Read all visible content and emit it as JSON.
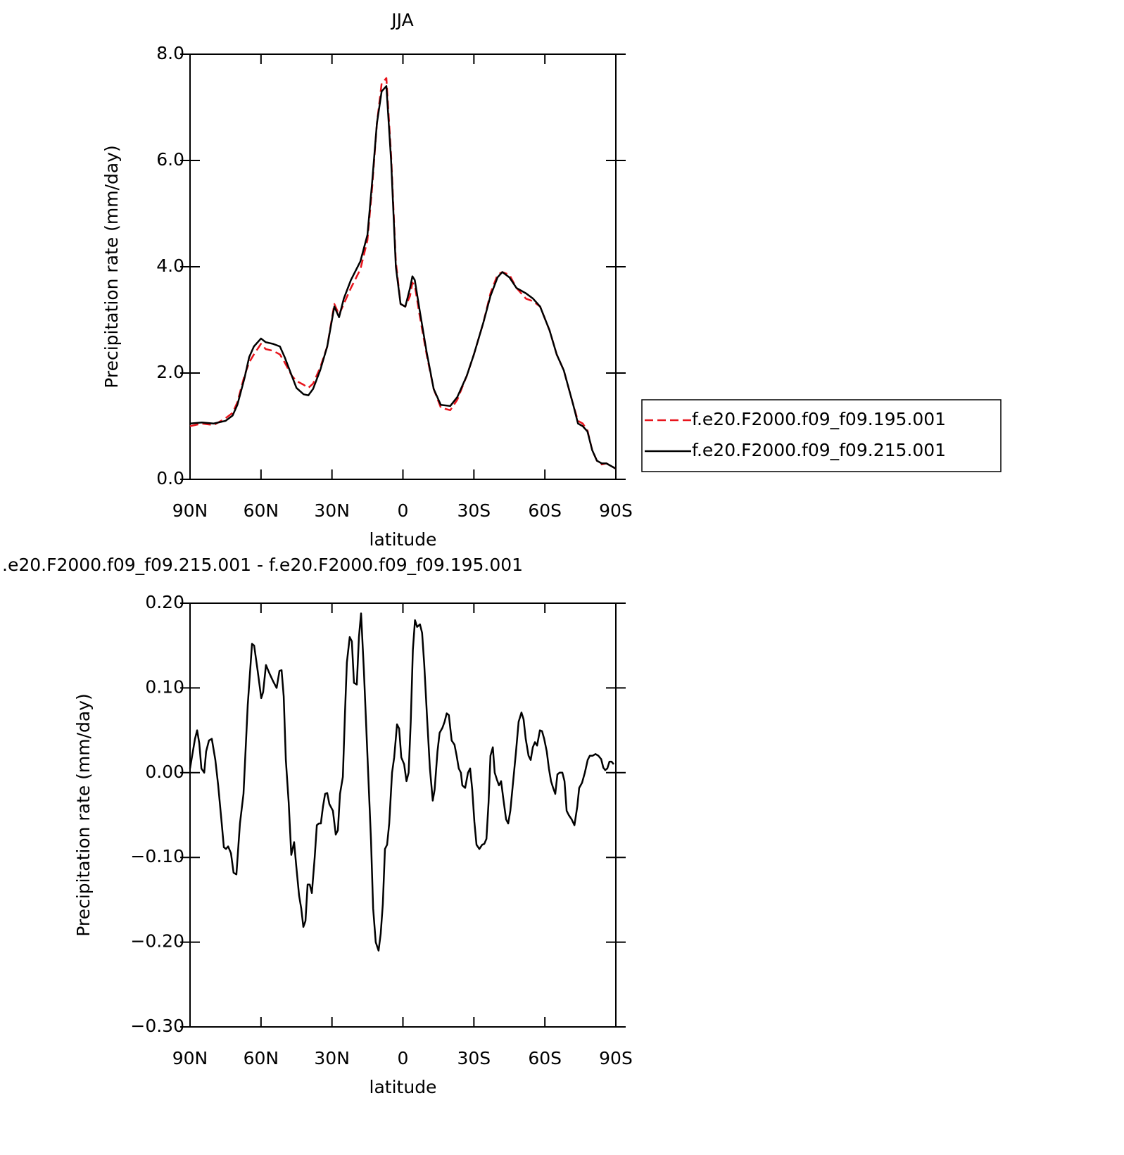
{
  "chart_data": [
    {
      "type": "line",
      "title": "JJA",
      "xlabel": "latitude",
      "ylabel": "Precipitation rate (mm/day)",
      "x": [
        90,
        85,
        80,
        75,
        72,
        70,
        67,
        65,
        63,
        60,
        58,
        55,
        52,
        50,
        47,
        45,
        42,
        40,
        38,
        35,
        32,
        29,
        27,
        25,
        22,
        18,
        15,
        13,
        11,
        9,
        7,
        5,
        3,
        1,
        -1,
        -3,
        -4,
        -5,
        -7,
        -10,
        -13,
        -16,
        -20,
        -23,
        -27,
        -30,
        -34,
        -37,
        -40,
        -42,
        -45,
        -48,
        -52,
        -55,
        -58,
        -62,
        -65,
        -68,
        -72,
        -74,
        -76,
        -78,
        -80,
        -82,
        -84,
        -86,
        -88,
        -90
      ],
      "series": [
        {
          "name": "f.e20.F2000.f09_f09.195.001",
          "color": "#e8141c",
          "line_style": "dashed",
          "values": [
            1.0,
            1.05,
            1.02,
            1.15,
            1.25,
            1.45,
            1.95,
            2.2,
            2.35,
            2.55,
            2.45,
            2.42,
            2.35,
            2.2,
            1.95,
            1.85,
            1.78,
            1.72,
            1.8,
            2.1,
            2.5,
            3.3,
            3.1,
            3.3,
            3.6,
            3.95,
            4.5,
            5.5,
            6.7,
            7.45,
            7.55,
            6.1,
            4.1,
            3.3,
            3.25,
            3.45,
            3.7,
            3.65,
            3.1,
            2.35,
            1.7,
            1.35,
            1.3,
            1.5,
            1.95,
            2.35,
            2.95,
            3.5,
            3.85,
            3.9,
            3.85,
            3.6,
            3.4,
            3.35,
            3.25,
            2.8,
            2.35,
            2.05,
            1.4,
            1.1,
            1.05,
            0.92,
            0.55,
            0.35,
            0.28,
            0.3,
            0.25,
            0.2
          ]
        },
        {
          "name": "f.e20.F2000.f09_f09.215.001",
          "color": "#000000",
          "line_style": "solid",
          "values": [
            1.05,
            1.07,
            1.05,
            1.1,
            1.2,
            1.4,
            1.9,
            2.3,
            2.5,
            2.65,
            2.58,
            2.55,
            2.5,
            2.3,
            1.95,
            1.72,
            1.6,
            1.58,
            1.7,
            2.05,
            2.5,
            3.25,
            3.05,
            3.4,
            3.75,
            4.1,
            4.6,
            5.6,
            6.7,
            7.3,
            7.4,
            6.0,
            4.0,
            3.3,
            3.25,
            3.6,
            3.82,
            3.75,
            3.2,
            2.4,
            1.7,
            1.4,
            1.38,
            1.55,
            1.95,
            2.35,
            2.95,
            3.45,
            3.8,
            3.9,
            3.8,
            3.6,
            3.5,
            3.4,
            3.25,
            2.8,
            2.35,
            2.05,
            1.4,
            1.05,
            1.0,
            0.9,
            0.55,
            0.35,
            0.3,
            0.3,
            0.25,
            0.2
          ]
        }
      ],
      "xlim": [
        90,
        -90
      ],
      "xticks": [
        {
          "value": 90,
          "label": "90N"
        },
        {
          "value": 60,
          "label": "60N"
        },
        {
          "value": 30,
          "label": "30N"
        },
        0,
        {
          "value": -30,
          "label": "30S"
        },
        {
          "value": -60,
          "label": "60S"
        },
        {
          "value": -90,
          "label": "90S"
        }
      ],
      "ylim": [
        0,
        8
      ],
      "yticks": [
        {
          "value": 0,
          "label": "0.0"
        },
        {
          "value": 2,
          "label": "2.0"
        },
        {
          "value": 4,
          "label": "4.0"
        },
        {
          "value": 6,
          "label": "6.0"
        },
        {
          "value": 8,
          "label": "8.0"
        }
      ],
      "legend": "right"
    },
    {
      "type": "line",
      "title": ".e20.F2000.f09_f09.215.001 - f.e20.F2000.f09_f09.195.001",
      "xlabel": "latitude",
      "ylabel": "Precipitation rate (mm/day)",
      "x": [
        90,
        87.9,
        87,
        86.1,
        85.2,
        84,
        83.2,
        82,
        80.8,
        79.3,
        78.1,
        76.6,
        75.7,
        74.8,
        73.9,
        72.7,
        71.6,
        70.4,
        68.9,
        67.4,
        65.6,
        63.8,
        62.9,
        61.4,
        59.9,
        59.1,
        57.9,
        56.4,
        54.9,
        53.4,
        52.2,
        51.3,
        50.4,
        49.5,
        48.3,
        47.2,
        46,
        45.1,
        43.9,
        43,
        42.1,
        41.2,
        40.3,
        39.4,
        38.5,
        37.3,
        36.4,
        35.6,
        34.7,
        33.8,
        32.9,
        32,
        31.1,
        29.6,
        28.4,
        27.5,
        26.6,
        25.4,
        24.5,
        23.7,
        22.5,
        21.6,
        20.7,
        19.5,
        18.6,
        17.7,
        16.5,
        15.6,
        14.7,
        13.5,
        12.6,
        11.5,
        10.3,
        9.4,
        8.5,
        7.6,
        6.7,
        5.8,
        4.6,
        3.7,
        2.5,
        1.6,
        0.7,
        -0.5,
        -1.5,
        -2.4,
        -3.3,
        -4.2,
        -5.1,
        -6,
        -7.2,
        -8.1,
        -9,
        -10.2,
        -11.4,
        -12.6,
        -13.4,
        -14.6,
        -15.5,
        -16.7,
        -17.6,
        -18.5,
        -19.4,
        -20.6,
        -21.8,
        -22.7,
        -23.6,
        -24.5,
        -25.1,
        -26.3,
        -27.5,
        -28.4,
        -29.3,
        -30.2,
        -31.1,
        -32.3,
        -33.5,
        -34.4,
        -35.3,
        -36.2,
        -37,
        -38,
        -38.8,
        -39.7,
        -40.6,
        -41.5,
        -42.4,
        -43.6,
        -44.5,
        -45.4,
        -46.6,
        -47.8,
        -48.9,
        -50.1,
        -51,
        -51.9,
        -53.1,
        -54,
        -54.9,
        -55.8,
        -56.7,
        -57.9,
        -58.8,
        -59.7,
        -60.8,
        -61.7,
        -62.6,
        -63.5,
        -64.4,
        -65.3,
        -66.2,
        -67.4,
        -68.3,
        -69.2,
        -70.1,
        -71.3,
        -72.5,
        -73.7,
        -74.5,
        -75.7,
        -76.9,
        -78.1,
        -79,
        -80.2,
        -81.4,
        -82.6,
        -83.8,
        -84.7,
        -85.5,
        -86.4,
        -87.3,
        -88.2,
        -89.1
      ],
      "values": [
        0.005,
        0.04,
        0.05,
        0.035,
        0.005,
        0.0,
        0.025,
        0.038,
        0.04,
        0.015,
        -0.015,
        -0.06,
        -0.088,
        -0.09,
        -0.087,
        -0.095,
        -0.118,
        -0.12,
        -0.06,
        -0.025,
        0.08,
        0.152,
        0.15,
        0.12,
        0.088,
        0.095,
        0.127,
        0.117,
        0.108,
        0.1,
        0.12,
        0.121,
        0.09,
        0.015,
        -0.035,
        -0.097,
        -0.082,
        -0.11,
        -0.145,
        -0.16,
        -0.182,
        -0.175,
        -0.132,
        -0.132,
        -0.142,
        -0.1,
        -0.062,
        -0.06,
        -0.06,
        -0.04,
        -0.025,
        -0.024,
        -0.037,
        -0.045,
        -0.073,
        -0.068,
        -0.025,
        -0.005,
        0.07,
        0.13,
        0.16,
        0.155,
        0.106,
        0.104,
        0.16,
        0.188,
        0.12,
        0.06,
        0.0,
        -0.08,
        -0.16,
        -0.2,
        -0.21,
        -0.19,
        -0.155,
        -0.09,
        -0.085,
        -0.06,
        0.0,
        0.018,
        0.057,
        0.052,
        0.018,
        0.01,
        -0.01,
        0.0,
        0.06,
        0.145,
        0.18,
        0.172,
        0.175,
        0.165,
        0.128,
        0.065,
        0.005,
        -0.033,
        -0.02,
        0.025,
        0.047,
        0.053,
        0.06,
        0.07,
        0.068,
        0.038,
        0.033,
        0.02,
        0.005,
        0.0,
        -0.015,
        -0.018,
        0.0,
        0.005,
        -0.02,
        -0.058,
        -0.085,
        -0.09,
        -0.085,
        -0.084,
        -0.078,
        -0.035,
        0.02,
        0.03,
        0.0,
        -0.008,
        -0.015,
        -0.01,
        -0.03,
        -0.055,
        -0.06,
        -0.045,
        -0.01,
        0.025,
        0.06,
        0.071,
        0.063,
        0.04,
        0.02,
        0.015,
        0.03,
        0.036,
        0.032,
        0.05,
        0.049,
        0.04,
        0.025,
        0.005,
        -0.01,
        -0.018,
        -0.025,
        -0.002,
        0.0,
        0.0,
        -0.01,
        -0.045,
        -0.05,
        -0.055,
        -0.062,
        -0.04,
        -0.018,
        -0.012,
        0.0,
        0.015,
        0.02,
        0.02,
        0.022,
        0.02,
        0.016,
        0.006,
        0.003,
        0.005,
        0.013,
        0.013,
        0.01
      ],
      "color": "#000000",
      "xlim": [
        90,
        -90
      ],
      "xticks": [
        {
          "value": 90,
          "label": "90N"
        },
        {
          "value": 60,
          "label": "60N"
        },
        {
          "value": 30,
          "label": "30N"
        },
        0,
        {
          "value": -30,
          "label": "30S"
        },
        {
          "value": -60,
          "label": "60S"
        },
        {
          "value": -90,
          "label": "90S"
        }
      ],
      "ylim": [
        -0.3,
        0.2
      ],
      "yticks": [
        {
          "value": 0.2,
          "label": "0.20"
        },
        {
          "value": 0.1,
          "label": "0.10"
        },
        {
          "value": 0,
          "label": "0.00"
        },
        {
          "value": -0.1,
          "label": "−0.10"
        },
        {
          "value": -0.2,
          "label": "−0.20"
        },
        {
          "value": -0.3,
          "label": "−0.30"
        }
      ]
    }
  ]
}
